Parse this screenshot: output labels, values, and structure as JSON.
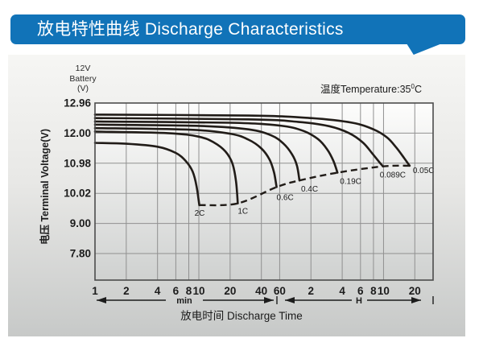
{
  "header": {
    "title": "放电特性曲线 Discharge Characteristics"
  },
  "colors": {
    "header_blue": "#1173b8",
    "header_text": "#ffffff",
    "curve": "#211c18",
    "grid": "#909090",
    "frame": "#4c4c4c",
    "text_dark": "#1c1c1c",
    "plot_bg_top": "#fdfdfc",
    "plot_bg_bottom": "#cfd1d0"
  },
  "chart_data": {
    "type": "line",
    "x_scale": "log",
    "title": "放电特性曲线 Discharge Characteristics",
    "corner_label": {
      "line1": "12V",
      "line2": "Battery",
      "line3": "(V)"
    },
    "temperature": {
      "prefix": "温度Temperature:35",
      "sup": "0",
      "suffix": "C"
    },
    "y_axis": {
      "title": "电压 Terminal Voltage(V)",
      "tick_values": [
        12.96,
        12.0,
        10.98,
        10.02,
        9.0,
        7.8
      ],
      "tick_labels": [
        "12.96",
        "12.00",
        "10.98",
        "10.02",
        "9.00",
        "7.80"
      ]
    },
    "x_axis": {
      "title": "放电时间 Discharge Time",
      "right_edge_minutes": 1800,
      "minute_ticks": [
        {
          "label": "1",
          "t": 1
        },
        {
          "label": "2",
          "t": 2
        },
        {
          "label": "4",
          "t": 4
        },
        {
          "label": "6",
          "t": 6
        },
        {
          "label": "8",
          "t": 8
        },
        {
          "label": "10",
          "t": 10
        },
        {
          "label": "20",
          "t": 20
        },
        {
          "label": "40",
          "t": 40
        },
        {
          "label": "60",
          "t": 60
        }
      ],
      "hour_ticks": [
        {
          "label": "2",
          "t": 120
        },
        {
          "label": "4",
          "t": 240
        },
        {
          "label": "6",
          "t": 360
        },
        {
          "label": "8",
          "t": 480
        },
        {
          "label": "10",
          "t": 600
        },
        {
          "label": "20",
          "t": 1200
        }
      ],
      "units": {
        "minutes": "min",
        "hours": "H"
      }
    },
    "series": [
      {
        "name": "0.05C",
        "label_dx": 4,
        "label_dy": 9,
        "points": [
          [
            1,
            12.59
          ],
          [
            30,
            12.56
          ],
          [
            120,
            12.48
          ],
          [
            300,
            12.33
          ],
          [
            480,
            12.12
          ],
          [
            650,
            11.85
          ],
          [
            800,
            11.5
          ],
          [
            950,
            11.15
          ],
          [
            1070,
            10.9
          ]
        ]
      },
      {
        "name": "0.089C",
        "label_dx": -4,
        "label_dy": 14,
        "points": [
          [
            1,
            12.48
          ],
          [
            30,
            12.44
          ],
          [
            90,
            12.36
          ],
          [
            180,
            12.22
          ],
          [
            280,
            12.0
          ],
          [
            380,
            11.68
          ],
          [
            470,
            11.3
          ],
          [
            545,
            11.02
          ],
          [
            593,
            10.88
          ]
        ]
      },
      {
        "name": "0.19C",
        "label_dx": 3,
        "label_dy": 14,
        "points": [
          [
            1,
            12.37
          ],
          [
            20,
            12.33
          ],
          [
            60,
            12.24
          ],
          [
            100,
            12.08
          ],
          [
            140,
            11.8
          ],
          [
            172,
            11.45
          ],
          [
            198,
            11.05
          ],
          [
            216,
            10.68
          ]
        ]
      },
      {
        "name": "0.4C",
        "label_dx": 2,
        "label_dy": 14,
        "points": [
          [
            1,
            12.27
          ],
          [
            10,
            12.23
          ],
          [
            30,
            12.12
          ],
          [
            50,
            11.92
          ],
          [
            65,
            11.65
          ],
          [
            79,
            11.28
          ],
          [
            88,
            10.9
          ],
          [
            93,
            10.43
          ]
        ]
      },
      {
        "name": "0.6C",
        "label_dx": 0,
        "label_dy": 16,
        "points": [
          [
            1,
            12.16
          ],
          [
            8,
            12.11
          ],
          [
            20,
            11.98
          ],
          [
            30,
            11.78
          ],
          [
            40,
            11.48
          ],
          [
            48,
            11.1
          ],
          [
            53,
            10.68
          ],
          [
            56,
            10.22
          ]
        ]
      },
      {
        "name": "1C",
        "label_dx": 0,
        "label_dy": 13,
        "points": [
          [
            1,
            12.05
          ],
          [
            5,
            12.0
          ],
          [
            10,
            11.88
          ],
          [
            14,
            11.68
          ],
          [
            18,
            11.38
          ],
          [
            21,
            10.98
          ],
          [
            22.8,
            10.4
          ],
          [
            23.7,
            9.68
          ]
        ]
      },
      {
        "name": "2C",
        "label_dx": -6,
        "label_dy": 13,
        "points": [
          [
            1,
            11.67
          ],
          [
            2,
            11.64
          ],
          [
            4,
            11.54
          ],
          [
            6,
            11.33
          ],
          [
            7.5,
            11.05
          ],
          [
            8.7,
            10.72
          ],
          [
            9.5,
            10.25
          ],
          [
            10.1,
            9.62
          ]
        ]
      }
    ],
    "connector": {
      "style": "dashed",
      "note": "dashed cutoff line through each curve endpoint"
    }
  }
}
